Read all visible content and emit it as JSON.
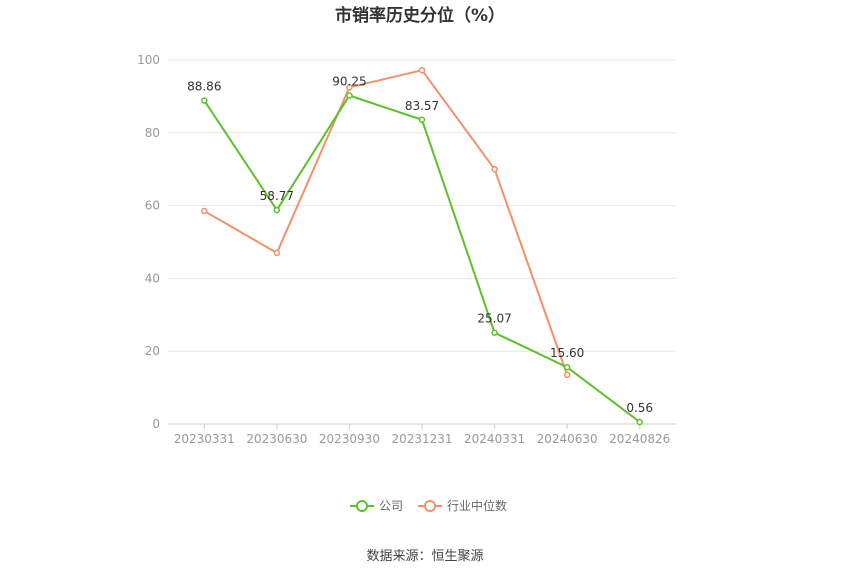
{
  "chart_data": {
    "type": "line",
    "title": "市销率历史分位（%）",
    "categories": [
      "20230331",
      "20230630",
      "20230930",
      "20231231",
      "20240331",
      "20240630",
      "20240826"
    ],
    "ylim": [
      0,
      100
    ],
    "yticks": [
      0,
      20,
      40,
      60,
      80,
      100
    ],
    "grid": true,
    "legend_position": "bottom",
    "series": [
      {
        "name": "公司",
        "color": "#5cc12a",
        "values": [
          88.86,
          58.77,
          90.25,
          83.57,
          25.07,
          15.6,
          0.56
        ],
        "labels": [
          "88.86",
          "58.77",
          "90.25",
          "83.57",
          "25.07",
          "15.60",
          "0.56"
        ]
      },
      {
        "name": "行业中位数",
        "color": "#f0926a",
        "values": [
          58.5,
          47.0,
          92.5,
          97.2,
          70.0,
          13.5,
          null
        ]
      }
    ]
  },
  "source_text": "数据来源：恒生聚源"
}
